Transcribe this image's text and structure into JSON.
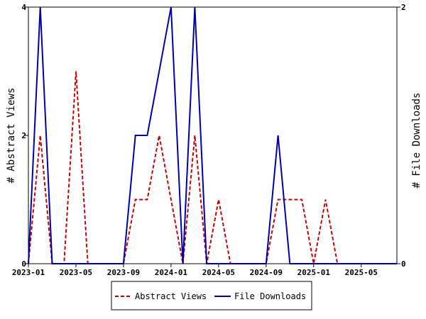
{
  "chart_data": {
    "type": "line",
    "xlabel": "",
    "ylabel_left": "# Abstract Views",
    "ylabel_right": "# File Downloads",
    "x_ticks": [
      "2023-01",
      "2023-05",
      "2023-09",
      "2024-01",
      "2024-05",
      "2024-09",
      "2025-01",
      "2025-05"
    ],
    "x_range": [
      "2023-01",
      "2025-08"
    ],
    "ylim_left": [
      0,
      4
    ],
    "ylim_right": [
      0,
      2
    ],
    "yticks_left": [
      "0",
      "2",
      "4"
    ],
    "yticks_right": [
      "0",
      "2"
    ],
    "grid": false,
    "legend_position": "bottom-center",
    "x": [
      "2023-01",
      "2023-02",
      "2023-03",
      "2023-04",
      "2023-05",
      "2023-06",
      "2023-07",
      "2023-08",
      "2023-09",
      "2023-10",
      "2023-11",
      "2023-12",
      "2024-01",
      "2024-02",
      "2024-03",
      "2024-04",
      "2024-05",
      "2024-06",
      "2024-07",
      "2024-08",
      "2024-09",
      "2024-10",
      "2024-11",
      "2024-12",
      "2025-01",
      "2025-02",
      "2025-03",
      "2025-04",
      "2025-05",
      "2025-06",
      "2025-07",
      "2025-08"
    ],
    "series": [
      {
        "name": "Abstract Views",
        "axis": "left",
        "color": "#cc0000",
        "style": "dashed",
        "values": [
          0,
          2,
          0,
          0,
          3,
          0,
          0,
          0,
          0,
          1,
          1,
          2,
          1,
          0,
          2,
          0,
          1,
          0,
          0,
          0,
          0,
          1,
          1,
          1,
          0,
          1,
          0,
          0,
          0,
          0,
          0,
          0
        ]
      },
      {
        "name": "File Downloads",
        "axis": "right",
        "color": "#0000aa",
        "style": "solid",
        "values": [
          0,
          2,
          0,
          0,
          0,
          0,
          0,
          0,
          0,
          1,
          1,
          1.5,
          2,
          0,
          2,
          0,
          0,
          0,
          0,
          0,
          0,
          1,
          0,
          0,
          0,
          0,
          0,
          0,
          0,
          0,
          0,
          0
        ]
      }
    ]
  }
}
